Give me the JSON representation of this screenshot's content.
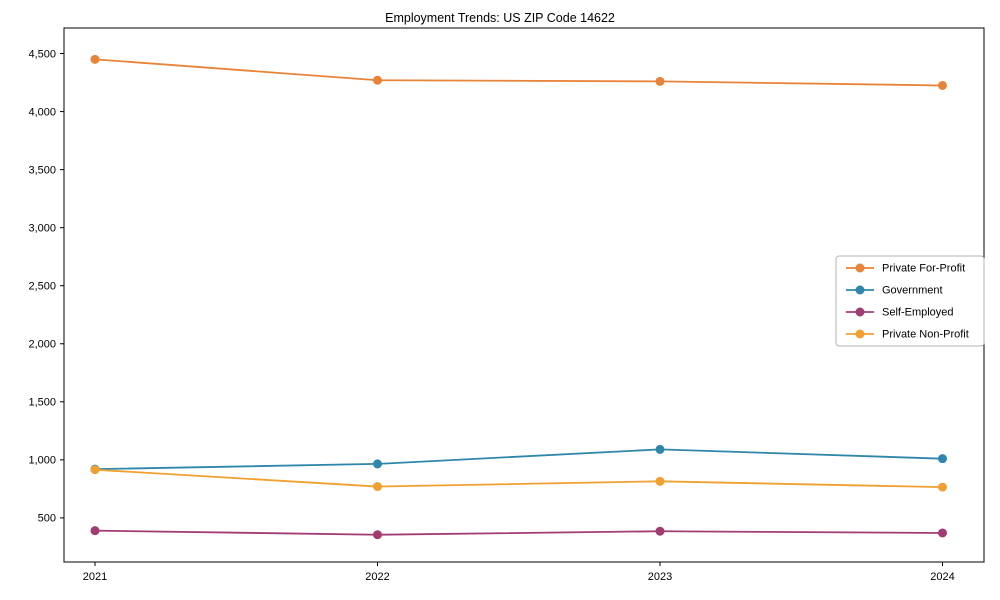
{
  "chart_data": {
    "type": "line",
    "title": "Employment Trends: US ZIP Code 14622",
    "xlabel": "",
    "ylabel": "",
    "x_labels": [
      "2021",
      "2022",
      "2023",
      "2024"
    ],
    "series": [
      {
        "name": "Private For-Profit",
        "color": "#E8833A",
        "values": [
          4450,
          4270,
          4260,
          4225
        ]
      },
      {
        "name": "Government",
        "color": "#2E86AB",
        "values": [
          920,
          965,
          1090,
          1010
        ]
      },
      {
        "name": "Self-Employed",
        "color": "#A23B72",
        "values": [
          390,
          355,
          385,
          370
        ]
      },
      {
        "name": "Private Non-Profit",
        "color": "#F0A030",
        "values": [
          915,
          770,
          815,
          765
        ]
      }
    ],
    "y_ticks": [
      500,
      1000,
      1500,
      2000,
      2500,
      3000,
      3500,
      4000,
      4500
    ],
    "y_tick_labels": [
      "500",
      "1,000",
      "1,500",
      "2,000",
      "2,500",
      "3,000",
      "3,500",
      "4,000",
      "4,500"
    ],
    "ylim": [
      120,
      4720
    ],
    "grid": false,
    "legend_position": "center right",
    "marker": "circle",
    "axis_color": "#000000",
    "background_color": "#ffffff"
  }
}
